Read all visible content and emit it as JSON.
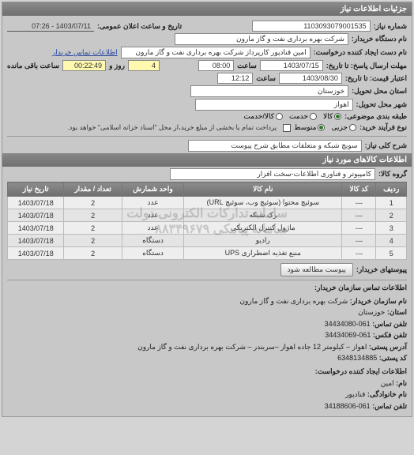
{
  "panel_title": "جزئیات اطلاعات نیاز",
  "header": {
    "need_no_label": "شماره نیاز:",
    "need_no": "1103093079001535",
    "announce_label": "تاریخ و ساعت اعلان عمومی:",
    "announce_value": "1403/07/11 - 07:26"
  },
  "buyer": {
    "org_label": "نام دستگاه خریدار:",
    "org_value": "شرکت بهره برداری نفت و گاز مارون",
    "requester_label": "نام دست ایجاد کننده درخواست:",
    "requester_value": "امین قنادپور کارپرداز شرکت بهره برداری نفت و گاز مارون",
    "contact_link": "اطلاعات تماس خریدار"
  },
  "deadlines": {
    "reply_until_label": "مهلت ارسال پاسخ: تا تاریخ:",
    "reply_date": "1403/07/15",
    "time_label": "ساعت",
    "reply_time": "08:00",
    "days_label": "روز و",
    "days_value": "4",
    "remain_label": "ساعت باقی مانده",
    "remain_value": "00:22:49",
    "price_until_label": "اعتبار قیمت: تا تاریخ:",
    "price_date": "1403/08/30",
    "price_time": "12:12"
  },
  "location": {
    "province_label": "استان محل تحویل:",
    "province": "خوزستان",
    "city_label": "شهر محل تحویل:",
    "city": "اهواز"
  },
  "subject_class": {
    "label": "طبقه بندی موضوعی:",
    "kala": "کالا",
    "khadamat": "خدمت",
    "both": "کالا/خدمت"
  },
  "process_type": {
    "label": "نوع فرآیند خرید:",
    "low": "جزیی",
    "mid": "متوسط",
    "note": "پرداخت تمام یا بخشی از مبلغ خرید،از محل \"اسناد خزانه اسلامی\" خواهد بود.",
    "checkbox_label": ""
  },
  "need_desc": {
    "label": "شرح کلی نیاز:",
    "value": "سویچ شبکه و متعلقات مطابق شرح پیوست"
  },
  "goods_section_title": "اطلاعات کالاهای مورد نیاز",
  "goods_group": {
    "label": "گروه کالا:",
    "value": "کامپیوتر و فناوری اطلاعات-سخت افزار"
  },
  "table": {
    "columns": [
      "ردیف",
      "کد کالا",
      "نام کالا",
      "واحد شمارش",
      "تعداد / مقدار",
      "تاریخ نیاز"
    ],
    "rows": [
      [
        "1",
        "---",
        "سوئیچ محتوا (سوئیچ وب، سوئیچ URL)",
        "عدد",
        "2",
        "1403/07/18"
      ],
      [
        "2",
        "---",
        "رک شبکه",
        "عدد",
        "2",
        "1403/07/18"
      ],
      [
        "3",
        "---",
        "ماژول کنترل الکتریکی",
        "عدد",
        "2",
        "1403/07/18"
      ],
      [
        "4",
        "---",
        "رادیو",
        "دستگاه",
        "2",
        "1403/07/18"
      ],
      [
        "5",
        "---",
        "منبع تغذیه اضطراری UPS",
        "دستگاه",
        "2",
        "1403/07/18"
      ]
    ],
    "watermark_lines": [
      "سامانه تدارکات الکترونی دولت",
      "سامانه پیامکی ۸۸۳۴۹۶۷۹"
    ]
  },
  "attachments": {
    "label": "پیوستهای خریدار:",
    "btn": "پیوست مطالعه شود"
  },
  "contact_section_title": "اطلاعات تماس سازمان خریدار:",
  "contact": {
    "org_name_k": "نام سازمان خریدار:",
    "org_name_v": "شرکت بهره برداری نفت و گاز مارون",
    "province_k": "استان:",
    "province_v": "خوزستان",
    "tel_k": "تلفن تماس:",
    "tel_v": "061-34434080",
    "fax_k": "تلفن فکس:",
    "fax_v": "061-34434069",
    "postal_k": "آدرس پستی:",
    "postal_v": "اهواز – کیلومتر 12 جاده اهواز –سربندر – شرکت بهره برداری نفت و گاز مارون",
    "zip_k": "کد پستی:",
    "zip_v": "6348134885",
    "creator_title": "اطلاعات ایجاد کننده درخواست:",
    "name_k": "نام:",
    "name_v": "امین",
    "family_k": "نام خانوادگی:",
    "family_v": "قنادپور",
    "phone_k": "تلفن تماس:",
    "phone_v": "061-34188606"
  }
}
